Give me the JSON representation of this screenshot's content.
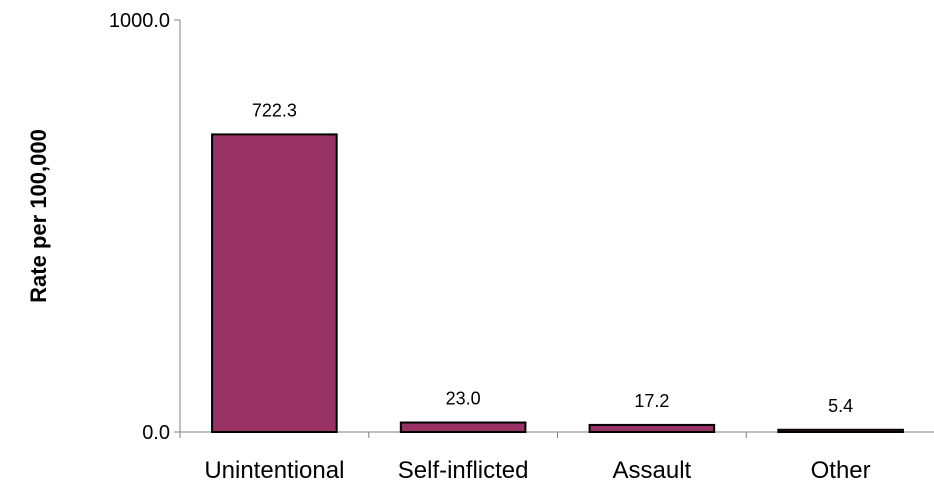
{
  "chart_data": {
    "type": "bar",
    "title": "",
    "xlabel": "",
    "ylabel": "Rate per 100,000",
    "categories": [
      "Unintentional",
      "Self-inflicted",
      "Assault",
      "Other"
    ],
    "values": [
      722.3,
      23.0,
      17.2,
      5.4
    ],
    "data_labels": [
      "722.3",
      "23.0",
      "17.2",
      "5.4"
    ],
    "ylim": [
      0,
      1000
    ],
    "y_ticks": [
      0,
      1000
    ],
    "y_tick_labels": [
      "0.0",
      "1000.0"
    ],
    "grid": false,
    "legend": "none",
    "bar_color": "#993366",
    "bar_edge_color": "#000000"
  }
}
